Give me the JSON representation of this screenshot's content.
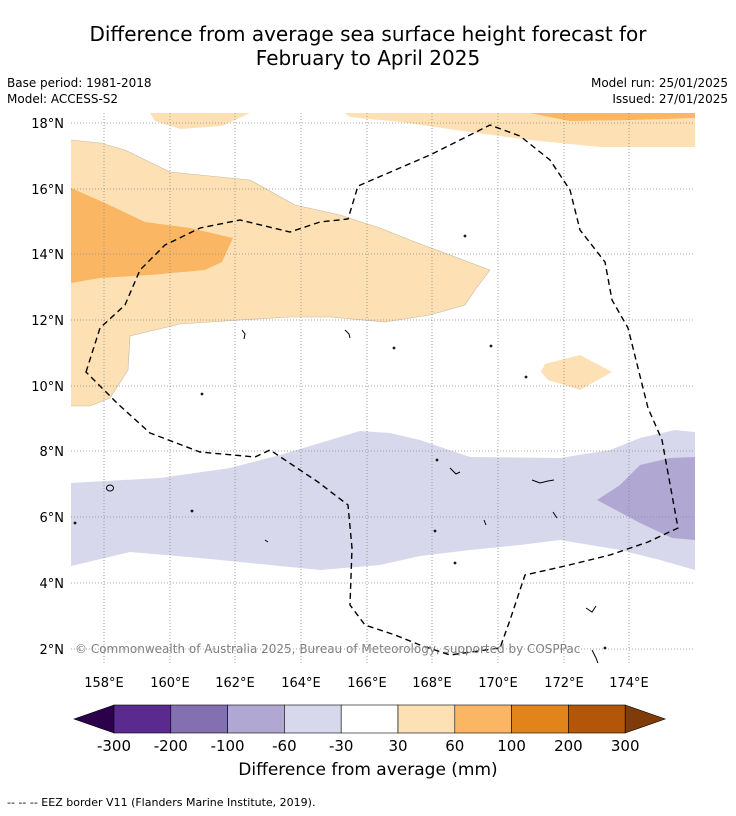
{
  "title_line1": "Difference from average sea surface height forecast for",
  "title_line2": "February to April 2025",
  "meta": {
    "base_period": "Base period: 1981-2018",
    "model": "Model: ACCESS-S2",
    "model_run": "Model run: 25/01/2025",
    "issued": "Issued: 27/01/2025"
  },
  "copyright": "© Commonwealth of Australia 2025, Bureau of Meteorology, supported by COSPPac",
  "lat_ticks": [
    "18°N",
    "16°N",
    "14°N",
    "12°N",
    "10°N",
    "8°N",
    "6°N",
    "4°N",
    "2°N"
  ],
  "lon_ticks": [
    "158°E",
    "160°E",
    "162°E",
    "164°E",
    "166°E",
    "168°E",
    "170°E",
    "172°E",
    "174°E"
  ],
  "colorbar": {
    "label": "Difference from average (mm)",
    "ticks": [
      "-300",
      "-200",
      "-100",
      "-60",
      "-30",
      "30",
      "60",
      "100",
      "200",
      "300"
    ],
    "colors": [
      "#2d004b",
      "#5b2a8e",
      "#8270b0",
      "#b0a8d2",
      "#d7d8eb",
      "#ffffff",
      "#fde0b3",
      "#fbb663",
      "#e28419",
      "#b45607",
      "#7f3b08"
    ]
  },
  "footnote": "-- -- -- EEZ border V11 (Flanders Marine Institute, 2019)."
}
